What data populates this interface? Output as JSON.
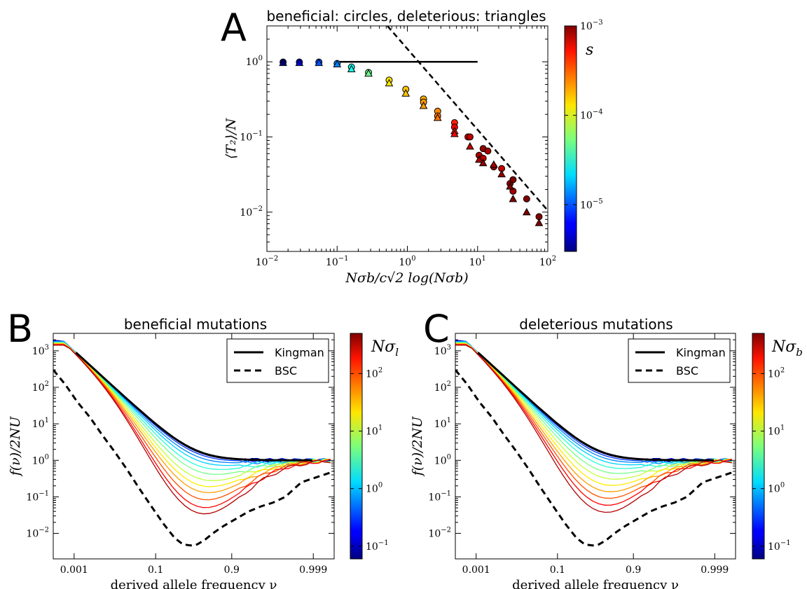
{
  "figure": {
    "panels": [
      {
        "letter": "A",
        "title": "beneficial: circles, deleterious: triangles"
      },
      {
        "letter": "B",
        "title": "beneficial mutations"
      },
      {
        "letter": "C",
        "title": "deleterious mutations"
      }
    ]
  },
  "chart_data": [
    {
      "id": "A",
      "type": "scatter",
      "title": "beneficial: circles, deleterious: triangles",
      "xlabel": "Nσ_b/c√(2 log(Nσ_b))",
      "ylabel": "⟨T₂⟩/N",
      "xscale": "log",
      "yscale": "log",
      "xlim": [
        0.01,
        100
      ],
      "ylim": [
        0.003,
        3
      ],
      "xticks": [
        {
          "v": 0.01,
          "base": "10",
          "exp": "−2"
        },
        {
          "v": 0.1,
          "base": "10",
          "exp": "−1"
        },
        {
          "v": 1,
          "base": "10",
          "exp": "0"
        },
        {
          "v": 10,
          "base": "10",
          "exp": "1"
        },
        {
          "v": 100,
          "base": "10",
          "exp": "2"
        }
      ],
      "yticks": [
        {
          "v": 0.01,
          "base": "10",
          "exp": "−2"
        },
        {
          "v": 0.1,
          "base": "10",
          "exp": "−1"
        },
        {
          "v": 1,
          "base": "10",
          "exp": "0"
        }
      ],
      "colorbar": {
        "label": "s",
        "min": 3e-06,
        "max": 0.001,
        "ticks": [
          {
            "v": 1e-05,
            "base": "10",
            "exp": "−5"
          },
          {
            "v": 0.0001,
            "base": "10",
            "exp": "−4"
          },
          {
            "v": 0.001,
            "base": "10",
            "exp": "−3"
          }
        ]
      },
      "reference_lines": [
        {
          "name": "Kingman",
          "style": "solid",
          "x": [
            0.1,
            10
          ],
          "y": [
            1.0,
            1.0
          ]
        },
        {
          "name": "BSC",
          "style": "dashed",
          "x": [
            0.52,
            100
          ],
          "y": [
            3.0,
            0.0105
          ]
        }
      ],
      "series": [
        {
          "marker": "circle",
          "points": [
            {
              "x": 0.017,
              "y": 0.99,
              "s": 3e-06
            },
            {
              "x": 0.029,
              "y": 0.99,
              "s": 5e-06
            },
            {
              "x": 0.055,
              "y": 0.99,
              "s": 1e-05
            },
            {
              "x": 0.1,
              "y": 0.95,
              "s": 1.3e-05
            },
            {
              "x": 0.16,
              "y": 0.85,
              "s": 3e-05
            },
            {
              "x": 0.28,
              "y": 0.72,
              "s": 5e-05
            },
            {
              "x": 0.55,
              "y": 0.57,
              "s": 0.00013
            },
            {
              "x": 0.95,
              "y": 0.43,
              "s": 0.00016
            },
            {
              "x": 1.7,
              "y": 0.32,
              "s": 0.00018
            },
            {
              "x": 1.7,
              "y": 0.29,
              "s": 0.0002
            },
            {
              "x": 2.7,
              "y": 0.22,
              "s": 0.00022
            },
            {
              "x": 2.7,
              "y": 0.19,
              "s": 0.00025
            },
            {
              "x": 4.7,
              "y": 0.155,
              "s": 0.0004
            },
            {
              "x": 4.7,
              "y": 0.135,
              "s": 0.0005
            },
            {
              "x": 7.3,
              "y": 0.1,
              "s": 0.0006
            },
            {
              "x": 7.8,
              "y": 0.1,
              "s": 0.0007
            },
            {
              "x": 10.5,
              "y": 0.057,
              "s": 0.0008
            },
            {
              "x": 12,
              "y": 0.07,
              "s": 0.0009
            },
            {
              "x": 12,
              "y": 0.052,
              "s": 0.0007
            },
            {
              "x": 14,
              "y": 0.065,
              "s": 0.0008
            },
            {
              "x": 17,
              "y": 0.04,
              "s": 0.0009
            },
            {
              "x": 22,
              "y": 0.038,
              "s": 0.0007
            },
            {
              "x": 29,
              "y": 0.024,
              "s": 0.0009
            },
            {
              "x": 32,
              "y": 0.027,
              "s": 0.001
            },
            {
              "x": 32,
              "y": 0.019,
              "s": 0.0008
            },
            {
              "x": 50,
              "y": 0.015,
              "s": 0.001
            },
            {
              "x": 75,
              "y": 0.0087,
              "s": 0.001
            }
          ]
        },
        {
          "marker": "triangle",
          "points": [
            {
              "x": 0.017,
              "y": 0.97,
              "s": 3e-06
            },
            {
              "x": 0.029,
              "y": 0.97,
              "s": 5e-06
            },
            {
              "x": 0.055,
              "y": 0.97,
              "s": 1e-05
            },
            {
              "x": 0.1,
              "y": 0.93,
              "s": 1.3e-05
            },
            {
              "x": 0.16,
              "y": 0.8,
              "s": 3e-05
            },
            {
              "x": 0.28,
              "y": 0.7,
              "s": 5e-05
            },
            {
              "x": 0.55,
              "y": 0.52,
              "s": 0.00013
            },
            {
              "x": 0.95,
              "y": 0.38,
              "s": 0.00016
            },
            {
              "x": 1.7,
              "y": 0.26,
              "s": 0.0002
            },
            {
              "x": 2.7,
              "y": 0.18,
              "s": 0.00025
            },
            {
              "x": 4.7,
              "y": 0.12,
              "s": 0.0004
            },
            {
              "x": 4.7,
              "y": 0.11,
              "s": 0.0005
            },
            {
              "x": 7.8,
              "y": 0.075,
              "s": 0.0007
            },
            {
              "x": 10.5,
              "y": 0.05,
              "s": 0.0008
            },
            {
              "x": 12,
              "y": 0.045,
              "s": 0.0009
            },
            {
              "x": 17,
              "y": 0.043,
              "s": 0.0008
            },
            {
              "x": 22,
              "y": 0.032,
              "s": 0.0009
            },
            {
              "x": 29,
              "y": 0.022,
              "s": 0.001
            },
            {
              "x": 32,
              "y": 0.015,
              "s": 0.001
            },
            {
              "x": 50,
              "y": 0.01,
              "s": 0.001
            },
            {
              "x": 75,
              "y": 0.0072,
              "s": 0.001
            }
          ]
        }
      ]
    },
    {
      "id": "B",
      "type": "line",
      "title": "beneficial mutations",
      "xlabel": "derived allele frequency ν",
      "ylabel": "f(ν)/2NU",
      "xscale": "logit",
      "yscale": "log",
      "xlim": [
        0.0003,
        0.9997
      ],
      "ylim": [
        0.002,
        3000
      ],
      "xticks": [
        {
          "v": 0.001,
          "label": "0.001"
        },
        {
          "v": 0.1,
          "label": "0.1"
        },
        {
          "v": 0.9,
          "label": "0.9"
        },
        {
          "v": 0.999,
          "label": "0.999"
        }
      ],
      "yticks": [
        {
          "v": 0.01,
          "base": "10",
          "exp": "−2"
        },
        {
          "v": 0.1,
          "base": "10",
          "exp": "−1"
        },
        {
          "v": 1,
          "base": "10",
          "exp": "0"
        },
        {
          "v": 10,
          "base": "10",
          "exp": "1"
        },
        {
          "v": 100,
          "base": "10",
          "exp": "2"
        },
        {
          "v": 1000,
          "base": "10",
          "exp": "3"
        }
      ],
      "legend": {
        "position": "top-right",
        "entries": [
          {
            "label": "Kingman",
            "style": "solid"
          },
          {
            "label": "BSC",
            "style": "dashed"
          }
        ]
      },
      "colorbar": {
        "label": "Nσ_l",
        "label_main": "Nσ",
        "label_sub": "l",
        "min": 0.06,
        "max": 500,
        "ticks": [
          {
            "v": 0.1,
            "base": "10",
            "exp": "−1"
          },
          {
            "v": 1,
            "base": "10",
            "exp": "0"
          },
          {
            "v": 10,
            "base": "10",
            "exp": "1"
          },
          {
            "v": 100,
            "base": "10",
            "exp": "2"
          }
        ]
      },
      "curve_model": "sim(ν; Nσ) = 1/ν + dip near ν≈0.5 deepening with Nσ; BSC lower bound",
      "kingman": {
        "x": [
          0.001,
          0.999
        ],
        "form": "1/nu"
      },
      "bsc": {
        "x": [
          0.0003,
          0.0006,
          0.0012,
          0.0025,
          0.005,
          0.01,
          0.02,
          0.04,
          0.08,
          0.15,
          0.25,
          0.35,
          0.45,
          0.5,
          0.55,
          0.65,
          0.75,
          0.85,
          0.92,
          0.96,
          0.98,
          0.99,
          0.995,
          0.998,
          0.9997
        ],
        "y": [
          300,
          120,
          40,
          15,
          5,
          1.8,
          0.6,
          0.18,
          0.055,
          0.018,
          0.0075,
          0.005,
          0.0047,
          0.0047,
          0.005,
          0.0065,
          0.01,
          0.016,
          0.025,
          0.04,
          0.055,
          0.07,
          0.1,
          0.25,
          0.5
        ]
      },
      "simulated": {
        "values_Nsigma": [
          0.08,
          0.15,
          0.3,
          0.6,
          1.2,
          2.5,
          5,
          10,
          20,
          40,
          80,
          160,
          320
        ],
        "min_value_at_mid": [
          1.0,
          0.95,
          0.85,
          0.7,
          0.55,
          0.4,
          0.28,
          0.18,
          0.12,
          0.08,
          0.05,
          0.03,
          0.02
        ]
      }
    },
    {
      "id": "C",
      "type": "line",
      "title": "deleterious mutations",
      "xlabel": "derived allele frequency ν",
      "ylabel": "f(ν)/2NU",
      "xscale": "logit",
      "yscale": "log",
      "xlim": [
        0.0003,
        0.9997
      ],
      "ylim": [
        0.002,
        3000
      ],
      "xticks": [
        {
          "v": 0.001,
          "label": "0.001"
        },
        {
          "v": 0.1,
          "label": "0.1"
        },
        {
          "v": 0.9,
          "label": "0.9"
        },
        {
          "v": 0.999,
          "label": "0.999"
        }
      ],
      "yticks": [
        {
          "v": 0.01,
          "base": "10",
          "exp": "−2"
        },
        {
          "v": 0.1,
          "base": "10",
          "exp": "−1"
        },
        {
          "v": 1,
          "base": "10",
          "exp": "0"
        },
        {
          "v": 10,
          "base": "10",
          "exp": "1"
        },
        {
          "v": 100,
          "base": "10",
          "exp": "2"
        },
        {
          "v": 1000,
          "base": "10",
          "exp": "3"
        }
      ],
      "legend": {
        "position": "top-right",
        "entries": [
          {
            "label": "Kingman",
            "style": "solid"
          },
          {
            "label": "BSC",
            "style": "dashed"
          }
        ]
      },
      "colorbar": {
        "label": "Nσ_b",
        "label_main": "Nσ",
        "label_sub": "b",
        "min": 0.06,
        "max": 500,
        "ticks": [
          {
            "v": 0.1,
            "base": "10",
            "exp": "−1"
          },
          {
            "v": 1,
            "base": "10",
            "exp": "0"
          },
          {
            "v": 10,
            "base": "10",
            "exp": "1"
          },
          {
            "v": 100,
            "base": "10",
            "exp": "2"
          }
        ]
      },
      "kingman": {
        "x": [
          0.001,
          0.999
        ],
        "form": "1/nu"
      },
      "bsc": {
        "x": [
          0.0003,
          0.0006,
          0.0012,
          0.0025,
          0.005,
          0.01,
          0.02,
          0.04,
          0.08,
          0.15,
          0.25,
          0.35,
          0.45,
          0.5,
          0.55,
          0.65,
          0.75,
          0.85,
          0.92,
          0.96,
          0.98,
          0.99,
          0.995,
          0.998,
          0.9997
        ],
        "y": [
          300,
          120,
          40,
          15,
          5,
          1.8,
          0.6,
          0.18,
          0.055,
          0.018,
          0.0075,
          0.005,
          0.0047,
          0.0047,
          0.005,
          0.0065,
          0.01,
          0.016,
          0.025,
          0.04,
          0.055,
          0.07,
          0.1,
          0.25,
          0.5
        ]
      },
      "simulated": {
        "values_Nsigma": [
          0.08,
          0.15,
          0.3,
          0.6,
          1.2,
          2.5,
          5,
          10,
          20,
          40,
          80,
          160,
          320
        ],
        "min_value_at_mid": [
          1.0,
          0.95,
          0.85,
          0.72,
          0.58,
          0.43,
          0.3,
          0.2,
          0.13,
          0.085,
          0.055,
          0.035,
          0.022
        ]
      }
    }
  ]
}
